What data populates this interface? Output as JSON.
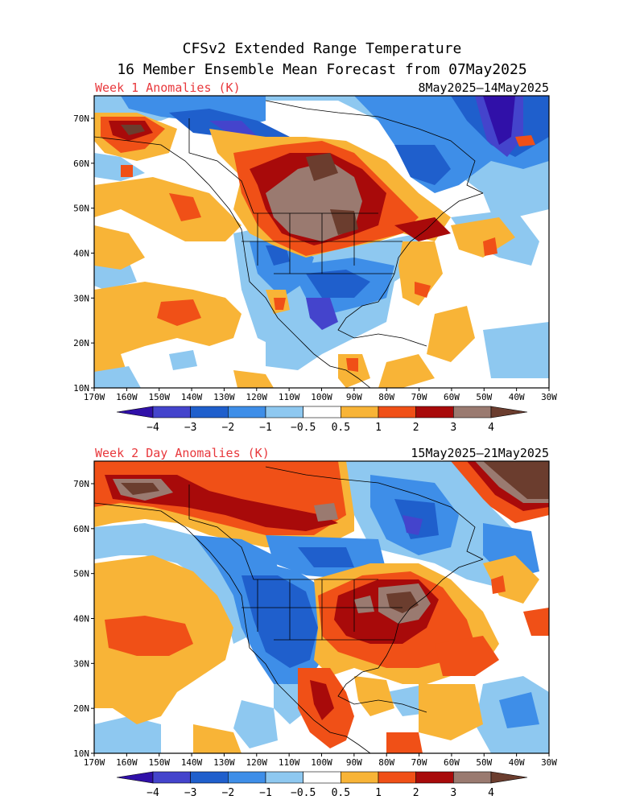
{
  "header": {
    "title_line1": "CFSv2 Extended Range Temperature",
    "title_line2": "16 Member Ensemble Mean Forecast from 07May2025"
  },
  "panels": [
    {
      "id": "week1",
      "label": "Week 1 Anomalies (K)",
      "date_range": "8May2025—14May2025",
      "lat_labels": [
        "70N",
        "60N",
        "50N",
        "40N",
        "30N",
        "20N",
        "10N"
      ],
      "lon_labels": [
        "170W",
        "160W",
        "150W",
        "140W",
        "130W",
        "120W",
        "110W",
        "100W",
        "90W",
        "80W",
        "70W",
        "60W",
        "50W",
        "40W",
        "30W"
      ]
    },
    {
      "id": "week2",
      "label": "Week 2 Day Anomalies (K)",
      "date_range": "15May2025—21May2025",
      "lat_labels": [
        "70N",
        "60N",
        "50N",
        "40N",
        "30N",
        "20N",
        "10N"
      ],
      "lon_labels": [
        "170W",
        "160W",
        "150W",
        "140W",
        "130W",
        "120W",
        "110W",
        "100W",
        "90W",
        "80W",
        "70W",
        "60W",
        "50W",
        "40W",
        "30W"
      ]
    }
  ],
  "colorbar": {
    "tick_labels": [
      "−4",
      "−3",
      "−2",
      "−1",
      "−0.5",
      "0.5",
      "1",
      "2",
      "3",
      "4"
    ],
    "colors": [
      "#3010a8",
      "#4444cc",
      "#1f5fcc",
      "#3e8ee8",
      "#8ec8f0",
      "#ffffff",
      "#f8b437",
      "#f05017",
      "#a80a0a",
      "#9a7a70",
      "#6b3d2e"
    ]
  },
  "colors": {
    "neg4": "#3010a8",
    "neg3": "#4444cc",
    "neg2": "#1f5fcc",
    "neg1": "#3e8ee8",
    "neg05": "#8ec8f0",
    "pos05": "#f8b437",
    "pos1": "#f05017",
    "pos2": "#a80a0a",
    "pos3": "#9a7a70",
    "pos4": "#6b3d2e",
    "label_red": "#e8383c"
  }
}
